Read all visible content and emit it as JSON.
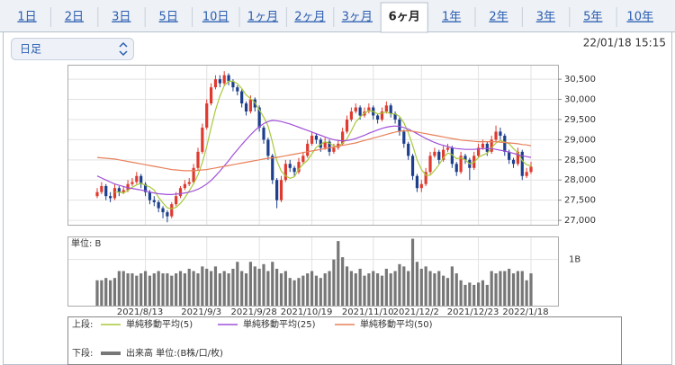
{
  "ui": {
    "tabs": [
      "1日",
      "2日",
      "3日",
      "5日",
      "10日",
      "1ヶ月",
      "2ヶ月",
      "3ヶ月",
      "6ヶ月",
      "1年",
      "2年",
      "3年",
      "5年",
      "10年"
    ],
    "active_tab": 8,
    "period_select": "日足",
    "timestamp": "22/01/18 15:15",
    "upper_label": "上段:",
    "lower_label": "下段:"
  },
  "chart_data": {
    "type": "candlestick",
    "categories": [
      null,
      null,
      null,
      null,
      null,
      null,
      null,
      null,
      null,
      null,
      null,
      "2021/8/13",
      null,
      null,
      null,
      null,
      null,
      null,
      null,
      null,
      null,
      null,
      null,
      null,
      null,
      "2021/9/3",
      null,
      null,
      null,
      null,
      null,
      null,
      null,
      null,
      null,
      null,
      null,
      "2021/9/28",
      null,
      null,
      null,
      null,
      null,
      null,
      null,
      null,
      null,
      null,
      null,
      "2021/10/19",
      null,
      null,
      null,
      null,
      null,
      null,
      null,
      null,
      null,
      null,
      null,
      null,
      null,
      "2021/11/10",
      null,
      null,
      null,
      null,
      null,
      null,
      null,
      null,
      null,
      null,
      "2021/12/2",
      null,
      null,
      null,
      null,
      null,
      null,
      null,
      null,
      null,
      null,
      null,
      null,
      "2021/12/23",
      null,
      null,
      null,
      null,
      null,
      null,
      null,
      null,
      null,
      null,
      null,
      "2022/1/18"
    ],
    "open": [
      27600,
      27700,
      27850,
      27600,
      27550,
      27800,
      27700,
      27750,
      27900,
      27950,
      28100,
      27900,
      27700,
      27500,
      27450,
      27300,
      27200,
      27100,
      27400,
      27600,
      27800,
      27900,
      27950,
      28300,
      28700,
      29300,
      29900,
      30300,
      30500,
      30400,
      30600,
      30450,
      30300,
      30200,
      29900,
      29700,
      30000,
      29800,
      29300,
      29000,
      28600,
      28000,
      27500,
      28000,
      28400,
      28300,
      28200,
      28450,
      28600,
      28900,
      29100,
      29000,
      28800,
      28950,
      28700,
      28800,
      28900,
      29200,
      29500,
      29700,
      29800,
      29600,
      29700,
      29800,
      29600,
      29500,
      29700,
      29850,
      29650,
      29500,
      29200,
      28900,
      28600,
      28100,
      27800,
      27900,
      28200,
      28600,
      28700,
      28500,
      28750,
      28800,
      28400,
      28200,
      28600,
      28500,
      28300,
      28600,
      28800,
      28900,
      28700,
      29000,
      29200,
      29100,
      28700,
      28500,
      28400,
      28700,
      28100,
      28200
    ],
    "high": [
      27800,
      27950,
      27900,
      27700,
      27900,
      27850,
      27850,
      28000,
      28050,
      28200,
      28150,
      27950,
      27750,
      27600,
      27500,
      27350,
      27250,
      27450,
      27700,
      27850,
      28000,
      28050,
      28400,
      28800,
      29400,
      30000,
      30400,
      30600,
      30600,
      30700,
      30650,
      30500,
      30350,
      30250,
      29950,
      30100,
      30050,
      29850,
      29350,
      29050,
      28650,
      28050,
      28100,
      28500,
      28500,
      28350,
      28550,
      28700,
      29000,
      29200,
      29150,
      29050,
      29050,
      29000,
      28900,
      29000,
      29300,
      29600,
      29800,
      29900,
      29850,
      29800,
      29900,
      29850,
      29650,
      29800,
      29950,
      29900,
      29700,
      29550,
      29250,
      28950,
      28650,
      28150,
      28000,
      28300,
      28700,
      28800,
      28750,
      28850,
      28900,
      28850,
      28450,
      28700,
      28650,
      28550,
      28700,
      28900,
      29000,
      28950,
      29100,
      29350,
      29300,
      29150,
      28750,
      28550,
      28800,
      28750,
      28300,
      28450
    ],
    "low": [
      27550,
      27650,
      27500,
      27450,
      27500,
      27600,
      27650,
      27700,
      27850,
      27900,
      27800,
      27600,
      27400,
      27350,
      27200,
      27050,
      26950,
      27050,
      27350,
      27550,
      27750,
      27850,
      27900,
      28250,
      28650,
      29250,
      29850,
      30250,
      30300,
      30350,
      30350,
      30200,
      30100,
      29800,
      29600,
      29650,
      29700,
      29200,
      28900,
      28500,
      27900,
      27300,
      27450,
      27950,
      28200,
      28100,
      28150,
      28400,
      28550,
      28850,
      28900,
      28700,
      28750,
      28600,
      28650,
      28750,
      28850,
      29150,
      29450,
      29650,
      29500,
      29550,
      29650,
      29500,
      29400,
      29450,
      29650,
      29550,
      29400,
      29100,
      28800,
      28500,
      28000,
      27700,
      27700,
      27850,
      28150,
      28550,
      28400,
      28450,
      28700,
      28300,
      28100,
      28150,
      28400,
      28000,
      28250,
      28550,
      28750,
      28600,
      28650,
      28950,
      29000,
      28600,
      28400,
      28300,
      28350,
      28000,
      28050,
      28150
    ],
    "close": [
      27700,
      27850,
      27600,
      27550,
      27800,
      27700,
      27750,
      27900,
      27950,
      28100,
      27900,
      27700,
      27500,
      27450,
      27300,
      27200,
      27100,
      27400,
      27600,
      27800,
      27900,
      27950,
      28300,
      28700,
      29300,
      29900,
      30300,
      30500,
      30400,
      30600,
      30450,
      30300,
      30200,
      29900,
      29700,
      30000,
      29800,
      29300,
      29000,
      28600,
      28000,
      27500,
      28000,
      28400,
      28300,
      28200,
      28450,
      28600,
      28900,
      29100,
      29000,
      28800,
      28950,
      28700,
      28800,
      28900,
      29200,
      29500,
      29700,
      29800,
      29600,
      29700,
      29800,
      29600,
      29500,
      29700,
      29850,
      29650,
      29500,
      29200,
      28900,
      28600,
      28100,
      27800,
      27900,
      28200,
      28600,
      28700,
      28500,
      28750,
      28800,
      28400,
      28200,
      28600,
      28500,
      28300,
      28600,
      28800,
      28900,
      28700,
      29000,
      29200,
      29100,
      28700,
      28500,
      28400,
      28700,
      28100,
      28200,
      28330
    ],
    "up_color": "#e03a2f",
    "down_color": "#1d3f8c",
    "series": [
      {
        "name": "単純移動平均(5)",
        "color": "#a8c93a",
        "values": [
          null,
          null,
          null,
          null,
          27700,
          27700,
          27680,
          27740,
          27820,
          27880,
          27920,
          27870,
          27830,
          27750,
          27570,
          27430,
          27310,
          27290,
          27320,
          27420,
          27560,
          27730,
          27910,
          28130,
          28430,
          28830,
          29300,
          29740,
          30080,
          30340,
          30450,
          30450,
          30390,
          30270,
          30110,
          30020,
          29920,
          29740,
          29560,
          29340,
          28940,
          28480,
          28220,
          28100,
          28040,
          28080,
          28270,
          28390,
          28490,
          28650,
          28810,
          28880,
          28950,
          28910,
          28850,
          28830,
          28910,
          29020,
          29220,
          29440,
          29560,
          29660,
          29720,
          29700,
          29640,
          29660,
          29690,
          29640,
          29640,
          29580,
          29420,
          29170,
          28860,
          28500,
          28260,
          28120,
          28120,
          28240,
          28380,
          28550,
          28670,
          28630,
          28530,
          28550,
          28500,
          28400,
          28440,
          28560,
          28620,
          28660,
          28800,
          28920,
          28980,
          28940,
          28900,
          28780,
          28680,
          28480,
          28380,
          28350
        ]
      },
      {
        "name": "単純移動平均(25)",
        "color": "#a050d8",
        "values": [
          28100,
          28050,
          28000,
          27950,
          27900,
          27870,
          27840,
          27810,
          27790,
          27770,
          27750,
          27730,
          27700,
          27680,
          27660,
          27650,
          27640,
          27640,
          27650,
          27660,
          27680,
          27700,
          27730,
          27770,
          27830,
          27900,
          27990,
          28100,
          28220,
          28350,
          28480,
          28620,
          28750,
          28880,
          29000,
          29120,
          29230,
          29320,
          29400,
          29450,
          29480,
          29470,
          29450,
          29420,
          29390,
          29350,
          29310,
          29270,
          29230,
          29190,
          29150,
          29110,
          29070,
          29030,
          29000,
          28980,
          28970,
          28980,
          29000,
          29030,
          29070,
          29110,
          29160,
          29200,
          29240,
          29280,
          29310,
          29330,
          29340,
          29330,
          29300,
          29260,
          29210,
          29150,
          29090,
          29030,
          28980,
          28930,
          28890,
          28860,
          28830,
          28800,
          28780,
          28770,
          28760,
          28760,
          28760,
          28770,
          28780,
          28780,
          28780,
          28760,
          28740,
          28720,
          28690,
          28660,
          28630,
          28600,
          28580,
          28560
        ]
      },
      {
        "name": "単純移動平均(50)",
        "color": "#e8805a",
        "values": [
          28560,
          28550,
          28540,
          28530,
          28520,
          28500,
          28480,
          28460,
          28440,
          28420,
          28400,
          28380,
          28360,
          28340,
          28320,
          28300,
          28280,
          28260,
          28250,
          28240,
          28230,
          28230,
          28230,
          28240,
          28250,
          28260,
          28280,
          28300,
          28320,
          28340,
          28360,
          28380,
          28400,
          28420,
          28440,
          28460,
          28480,
          28500,
          28520,
          28540,
          28550,
          28560,
          28580,
          28600,
          28620,
          28640,
          28660,
          28680,
          28700,
          28720,
          28740,
          28760,
          28780,
          28800,
          28820,
          28840,
          28860,
          28880,
          28900,
          28920,
          28950,
          28980,
          29010,
          29040,
          29070,
          29100,
          29130,
          29160,
          29190,
          29210,
          29220,
          29220,
          29210,
          29190,
          29170,
          29150,
          29130,
          29110,
          29090,
          29070,
          29050,
          29030,
          29010,
          28990,
          28980,
          28970,
          28960,
          28950,
          28950,
          28950,
          28950,
          28950,
          28940,
          28930,
          28920,
          28910,
          28900,
          28880,
          28870,
          28850
        ]
      }
    ],
    "ylim": [
      26890,
      30860
    ],
    "yticks": [
      {
        "value": 30500,
        "label": "30,500"
      },
      {
        "value": 30000,
        "label": "30,000"
      },
      {
        "value": 29500,
        "label": "29,500"
      },
      {
        "value": 29000,
        "label": "29,000"
      },
      {
        "value": 28500,
        "label": "28,500"
      },
      {
        "value": 28000,
        "label": "28,000"
      },
      {
        "value": 27500,
        "label": "27,500"
      },
      {
        "value": 27000,
        "label": "27,000"
      }
    ],
    "grid": true,
    "volume": {
      "name": "出来高 単位:(B株/口/枚)",
      "unit_label": "単位: B",
      "color": "#777777",
      "ylim": [
        0,
        1.5
      ],
      "yticks": [
        {
          "value": 1,
          "label": "1B"
        }
      ],
      "values": [
        0.55,
        0.55,
        0.6,
        0.55,
        0.6,
        0.75,
        0.75,
        0.7,
        0.7,
        0.65,
        0.7,
        0.75,
        0.65,
        0.7,
        0.75,
        0.7,
        0.7,
        0.65,
        0.7,
        0.75,
        0.7,
        0.8,
        0.75,
        0.7,
        0.85,
        0.8,
        0.75,
        0.85,
        0.7,
        0.75,
        0.7,
        0.8,
        0.95,
        0.75,
        0.7,
        0.95,
        0.85,
        0.8,
        0.9,
        0.75,
        0.95,
        0.8,
        0.7,
        0.75,
        0.6,
        0.55,
        0.6,
        0.65,
        0.7,
        0.75,
        0.65,
        0.6,
        0.7,
        0.75,
        1.0,
        1.4,
        1.05,
        0.85,
        0.75,
        0.7,
        0.8,
        0.65,
        0.7,
        0.75,
        0.7,
        0.65,
        0.8,
        0.7,
        0.75,
        0.9,
        0.85,
        0.75,
        1.45,
        0.95,
        0.8,
        0.85,
        0.75,
        0.7,
        0.75,
        0.65,
        0.6,
        0.85,
        0.7,
        0.55,
        0.45,
        0.5,
        0.45,
        0.5,
        0.55,
        0.45,
        0.75,
        0.7,
        0.75,
        0.75,
        0.8,
        0.7,
        0.75,
        0.75,
        0.55,
        0.7
      ]
    }
  }
}
